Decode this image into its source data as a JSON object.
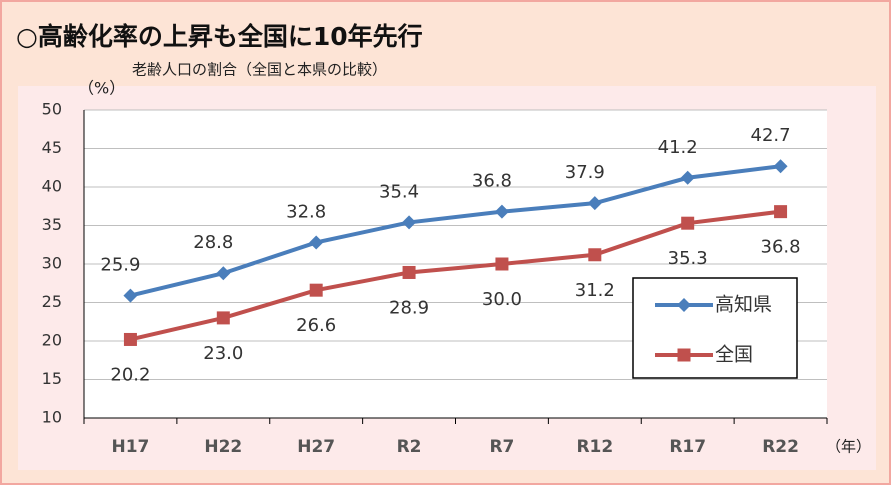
{
  "chart_data": {
    "type": "line",
    "title": "○高齢化率の上昇も全国に10年先行",
    "subtitle": "老齢人口の割合（全国と本県の比較）",
    "y_label": "（%）",
    "x_label": "（年）",
    "categories": [
      "H17",
      "H22",
      "H27",
      "R2",
      "R7",
      "R12",
      "R17",
      "R22"
    ],
    "series": [
      {
        "name": "高知県",
        "color": "#4a7ebb",
        "marker": "diamond",
        "values": [
          25.9,
          28.8,
          32.8,
          35.4,
          36.8,
          37.9,
          41.2,
          42.7
        ],
        "value_labels": [
          "25.9",
          "28.8",
          "32.8",
          "35.4",
          "36.8",
          "37.9",
          "41.2",
          "42.7"
        ]
      },
      {
        "name": "全国",
        "color": "#c0504d",
        "marker": "square",
        "values": [
          20.2,
          23,
          26.6,
          28.9,
          30,
          31.2,
          35.3,
          36.8
        ],
        "value_labels": [
          "20.2",
          "23.0",
          "26.6",
          "28.9",
          "30.0",
          "31.2",
          "35.3",
          "36.8"
        ]
      }
    ],
    "ylim": [
      10,
      50
    ],
    "yticks": [
      10,
      15,
      20,
      25,
      30,
      35,
      40,
      45,
      50
    ],
    "grid": true,
    "legend": "lower right"
  }
}
